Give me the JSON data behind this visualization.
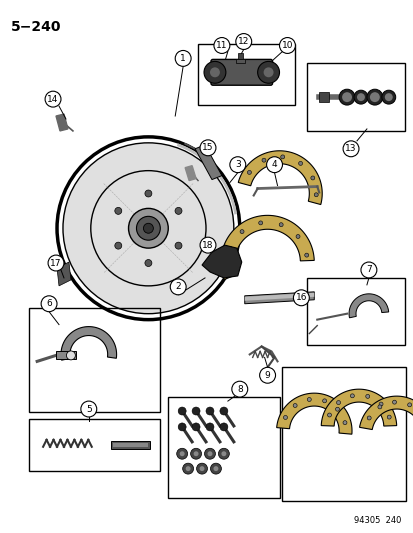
{
  "title": "5−240",
  "watermark": "94305  240",
  "bg_color": "#ffffff",
  "line_color": "#000000",
  "fig_width": 4.14,
  "fig_height": 5.33,
  "dpi": 100
}
